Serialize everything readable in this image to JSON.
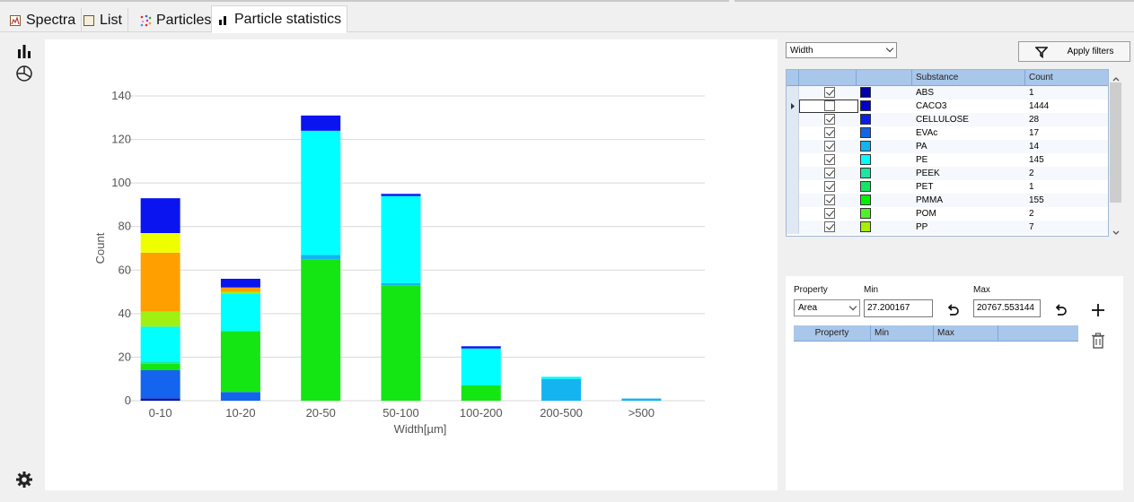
{
  "tabs": [
    {
      "label": "Spectra",
      "icon": "spectra-icon"
    },
    {
      "label": "List",
      "icon": "list-icon"
    },
    {
      "label": "Particles",
      "icon": "particles-icon"
    },
    {
      "label": "Particle statistics",
      "icon": "statistics-icon",
      "active": true
    }
  ],
  "sidebar_icons": [
    "bar-chart-icon",
    "pie-chart-icon",
    "settings-gear-icon"
  ],
  "filter": {
    "dimension_value": "Width",
    "apply_label": "Apply filters"
  },
  "substance_table": {
    "headers": [
      "",
      "",
      "Substance",
      "Count"
    ],
    "rows": [
      {
        "substance": "ABS",
        "count": "1",
        "checked": true,
        "color": "#0000a8"
      },
      {
        "substance": "CACO3",
        "count": "1444",
        "checked": false,
        "color": "#0000c8",
        "current": true
      },
      {
        "substance": "CELLULOSE",
        "count": "28",
        "checked": true,
        "color": "#0a1ee6"
      },
      {
        "substance": "EVAc",
        "count": "17",
        "checked": true,
        "color": "#1464e6"
      },
      {
        "substance": "PA",
        "count": "14",
        "checked": true,
        "color": "#14b4f0"
      },
      {
        "substance": "PE",
        "count": "145",
        "checked": true,
        "color": "#00ffff"
      },
      {
        "substance": "PEEK",
        "count": "2",
        "checked": true,
        "color": "#1ee6a0"
      },
      {
        "substance": "PET",
        "count": "1",
        "checked": true,
        "color": "#14e664"
      },
      {
        "substance": "PMMA",
        "count": "155",
        "checked": true,
        "color": "#00f000"
      },
      {
        "substance": "POM",
        "count": "2",
        "checked": true,
        "color": "#50f028"
      },
      {
        "substance": "PP",
        "count": "7",
        "checked": true,
        "color": "#a8f000"
      }
    ]
  },
  "property_filter": {
    "property_label": "Property",
    "min_label": "Min",
    "max_label": "Max",
    "property_value": "Area",
    "min_value": "27.200167",
    "max_value": "20767.553144",
    "table_headers": [
      "Property",
      "Min",
      "Max",
      ""
    ]
  },
  "chart_data": {
    "type": "bar",
    "stacked": true,
    "xlabel": "Width[µm]",
    "ylabel": "Count",
    "ylim": [
      0,
      140
    ],
    "yticks": [
      0,
      20,
      40,
      60,
      80,
      100,
      120,
      140
    ],
    "categories": [
      "0-10",
      "10-20",
      "20-50",
      "50-100",
      "100-200",
      "200-500",
      ">500"
    ],
    "grid": true,
    "series": [
      {
        "color": "#0a14a0",
        "values": [
          1,
          0,
          0,
          0,
          0,
          0,
          0
        ]
      },
      {
        "color": "#1464f0",
        "values": [
          13,
          4,
          0,
          0,
          0,
          0,
          0
        ]
      },
      {
        "color": "#14e614",
        "values": [
          3,
          28,
          65,
          53,
          7,
          0,
          0
        ]
      },
      {
        "color": "#1ee696",
        "values": [
          1,
          0,
          0,
          0,
          0,
          0,
          0
        ]
      },
      {
        "color": "#14b4f0",
        "values": [
          0,
          0,
          2,
          1,
          0,
          10,
          1
        ]
      },
      {
        "color": "#00ffff",
        "values": [
          16,
          17,
          57,
          40,
          17,
          1,
          0
        ]
      },
      {
        "color": "#a0f014",
        "values": [
          7,
          1,
          0,
          0,
          0,
          0,
          0
        ]
      },
      {
        "color": "#ffa000",
        "values": [
          27,
          2,
          0,
          0,
          0,
          0,
          0
        ]
      },
      {
        "color": "#f0ff00",
        "values": [
          9,
          0,
          0,
          0,
          0,
          0,
          0
        ]
      },
      {
        "color": "#0a14f0",
        "values": [
          16,
          4,
          7,
          1,
          1,
          0,
          0
        ]
      }
    ]
  }
}
